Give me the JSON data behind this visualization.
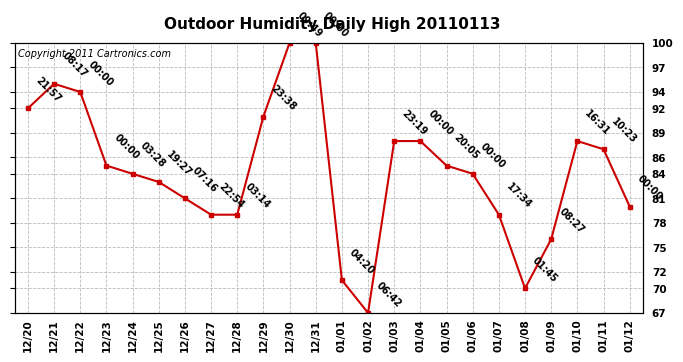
{
  "title": "Outdoor Humidity Daily High 20110113",
  "copyright": "Copyright 2011 Cartronics.com",
  "x_labels": [
    "12/20",
    "12/21",
    "12/22",
    "12/23",
    "12/24",
    "12/25",
    "12/26",
    "12/27",
    "12/28",
    "12/29",
    "12/30",
    "12/31",
    "01/01",
    "01/02",
    "01/03",
    "01/04",
    "01/05",
    "01/06",
    "01/07",
    "01/08",
    "01/09",
    "01/10",
    "01/11",
    "01/12"
  ],
  "y_values": [
    92,
    95,
    94,
    85,
    84,
    83,
    81,
    79,
    79,
    91,
    100,
    100,
    71,
    67,
    88,
    88,
    85,
    84,
    79,
    70,
    76,
    88,
    87,
    80
  ],
  "point_labels": [
    "21:57",
    "08:17",
    "00:00",
    "00:00",
    "03:28",
    "19:27",
    "07:16",
    "22:54",
    "03:14",
    "23:38",
    "09:49",
    "00:00",
    "04:20",
    "06:42",
    "23:19",
    "00:00",
    "20:05",
    "00:00",
    "17:34",
    "01:45",
    "08:27",
    "16:31",
    "10:23",
    "00:00"
  ],
  "line_color": "#cc0000",
  "marker_color": "#cc0000",
  "background_color": "#ffffff",
  "grid_color": "#bbbbbb",
  "ylim_min": 67,
  "ylim_max": 100,
  "yticks": [
    67,
    70,
    72,
    75,
    78,
    81,
    84,
    86,
    89,
    92,
    94,
    97,
    100
  ],
  "title_fontsize": 11,
  "label_fontsize": 7,
  "copyright_fontsize": 7,
  "tick_fontsize": 7.5
}
